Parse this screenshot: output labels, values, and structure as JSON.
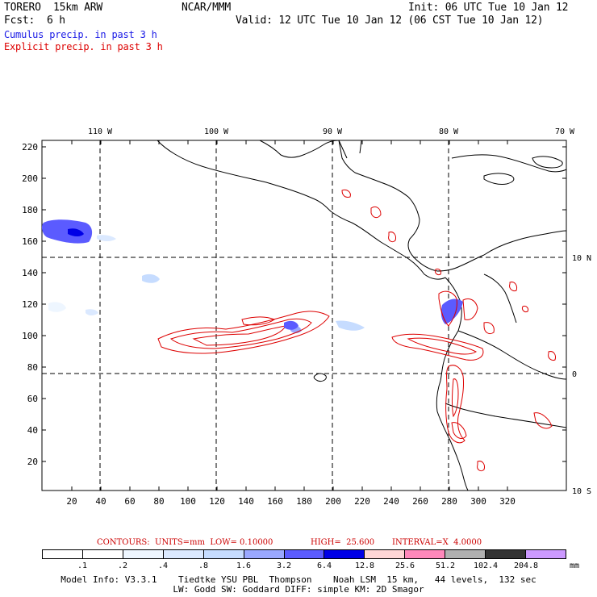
{
  "header": {
    "model": "TORERO  15km ARW",
    "org": "NCAR/MMM",
    "init": "Init: 06 UTC Tue 10 Jan 12",
    "fcst_label": "Fcst:",
    "fcst_value": "6 h",
    "valid": "Valid: 12 UTC Tue 10 Jan 12 (06 CST Tue 10 Jan 12)",
    "line_cumulus": "Cumulus precip. in past 3 h",
    "line_explicit": "Explicit precip. in past 3 h"
  },
  "colors": {
    "cumulus": "#1a1ae6",
    "explicit": "#dd0000",
    "coast": "#000000"
  },
  "map": {
    "lon_labels": [
      "110 W",
      "100 W",
      "90 W",
      "80 W",
      "70 W"
    ],
    "lat_labels": [
      "10 N",
      "0",
      "10 S"
    ],
    "x_ticks": [
      "20",
      "40",
      "60",
      "80",
      "100",
      "120",
      "140",
      "160",
      "180",
      "200",
      "220",
      "240",
      "260",
      "280",
      "300",
      "320"
    ],
    "y_ticks": [
      "20",
      "40",
      "60",
      "80",
      "100",
      "120",
      "140",
      "160",
      "180",
      "200",
      "220"
    ]
  },
  "contours": {
    "title": "CONTOURS:",
    "units": "UNITS=mm",
    "low": "LOW= 0.10000",
    "high": "HIGH=  25.600",
    "interval": "INTERVAL=X  4.0000"
  },
  "colorbar": {
    "unit": "mm",
    "labels": [
      ".1",
      ".2",
      ".4",
      ".8",
      "1.6",
      "3.2",
      "6.4",
      "12.8",
      "25.6",
      "51.2",
      "102.4",
      "204.8"
    ],
    "colors": [
      "#ffffff",
      "#ffffff",
      "#eef6ff",
      "#dbe9ff",
      "#c6dcff",
      "#9aa8ff",
      "#5b5bff",
      "#0000e6",
      "#ffd6d6",
      "#ff88bb",
      "#b0b0b0",
      "#333333",
      "#cc99ff"
    ]
  },
  "footer": {
    "line1": "Model Info: V3.3.1    Tiedtke YSU PBL  Thompson    Noah LSM  15 km,   44 levels,  132 sec",
    "line2": "LW: Godd SW: Goddard DIFF: simple KM: 2D Smagor"
  }
}
